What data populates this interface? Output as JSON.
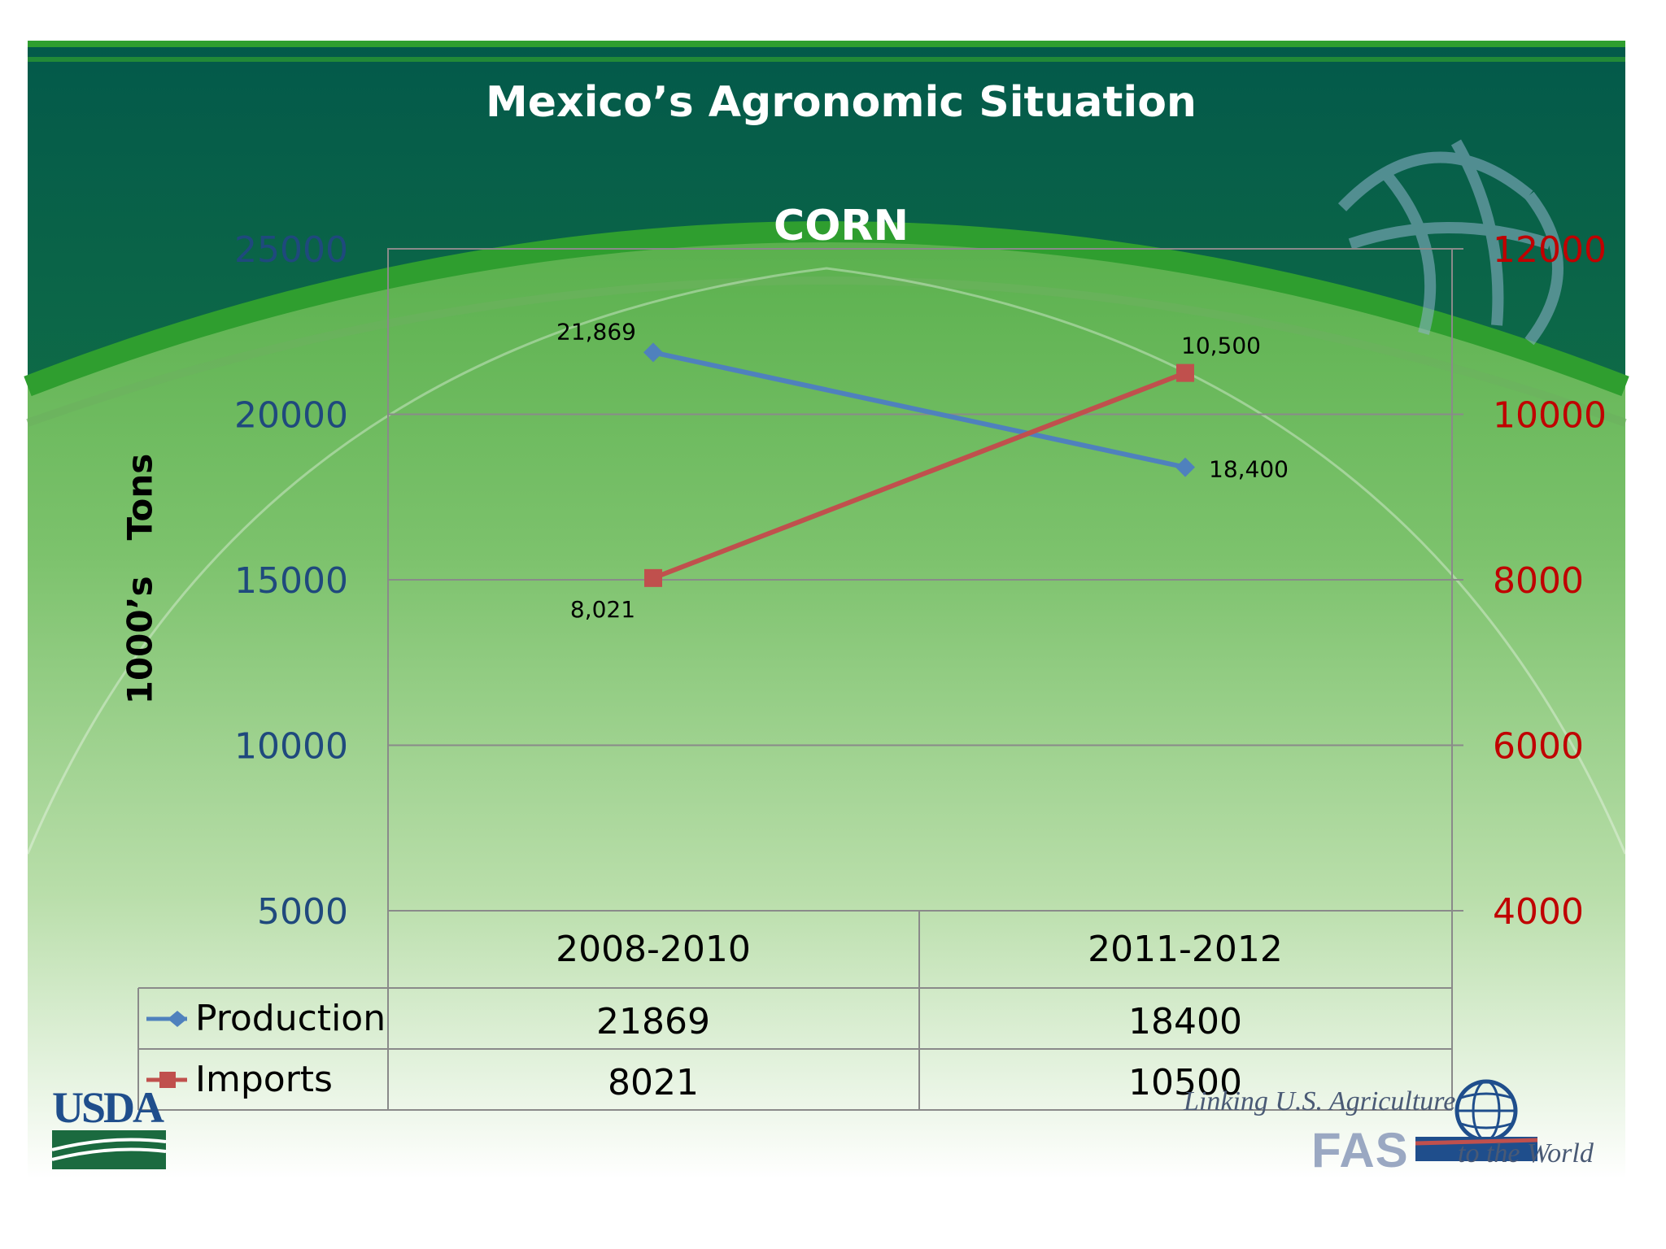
{
  "slide": {
    "title": "Mexico’s Agronomic Situation",
    "logo_left": "USDA",
    "logo_right_tagline": "Linking U.S. Agriculture",
    "logo_right_acronym": "FAS",
    "logo_right_world": "to the World"
  },
  "colors": {
    "production": "#4f81bd",
    "imports": "#c0504d",
    "left_axis": "#1f497d",
    "right_axis": "#c00000",
    "header_green": "#03594a"
  },
  "chart_data": {
    "type": "line",
    "title": "CORN",
    "ylabel": "1000’s   Tons",
    "categories": [
      "2008-2010",
      "2011-2012"
    ],
    "y_left": {
      "range": [
        5000,
        25000
      ],
      "ticks": [
        5000,
        10000,
        15000,
        20000,
        25000
      ]
    },
    "y_right": {
      "range": [
        4000,
        12000
      ],
      "ticks": [
        4000,
        6000,
        8000,
        10000,
        12000
      ]
    },
    "grid": true,
    "legend": "data table",
    "series": [
      {
        "name": "Production",
        "axis": "left",
        "marker": "diamond",
        "values": [
          21869,
          18400
        ],
        "labels": [
          "21,869",
          "18,400"
        ]
      },
      {
        "name": "Imports",
        "axis": "right",
        "marker": "square",
        "values": [
          8021,
          10500
        ],
        "labels": [
          "8,021",
          "10,500"
        ]
      }
    ],
    "table": {
      "rows": [
        {
          "name": "Production",
          "values": [
            "21869",
            "18400"
          ]
        },
        {
          "name": "Imports",
          "values": [
            "8021",
            "10500"
          ]
        }
      ]
    }
  }
}
